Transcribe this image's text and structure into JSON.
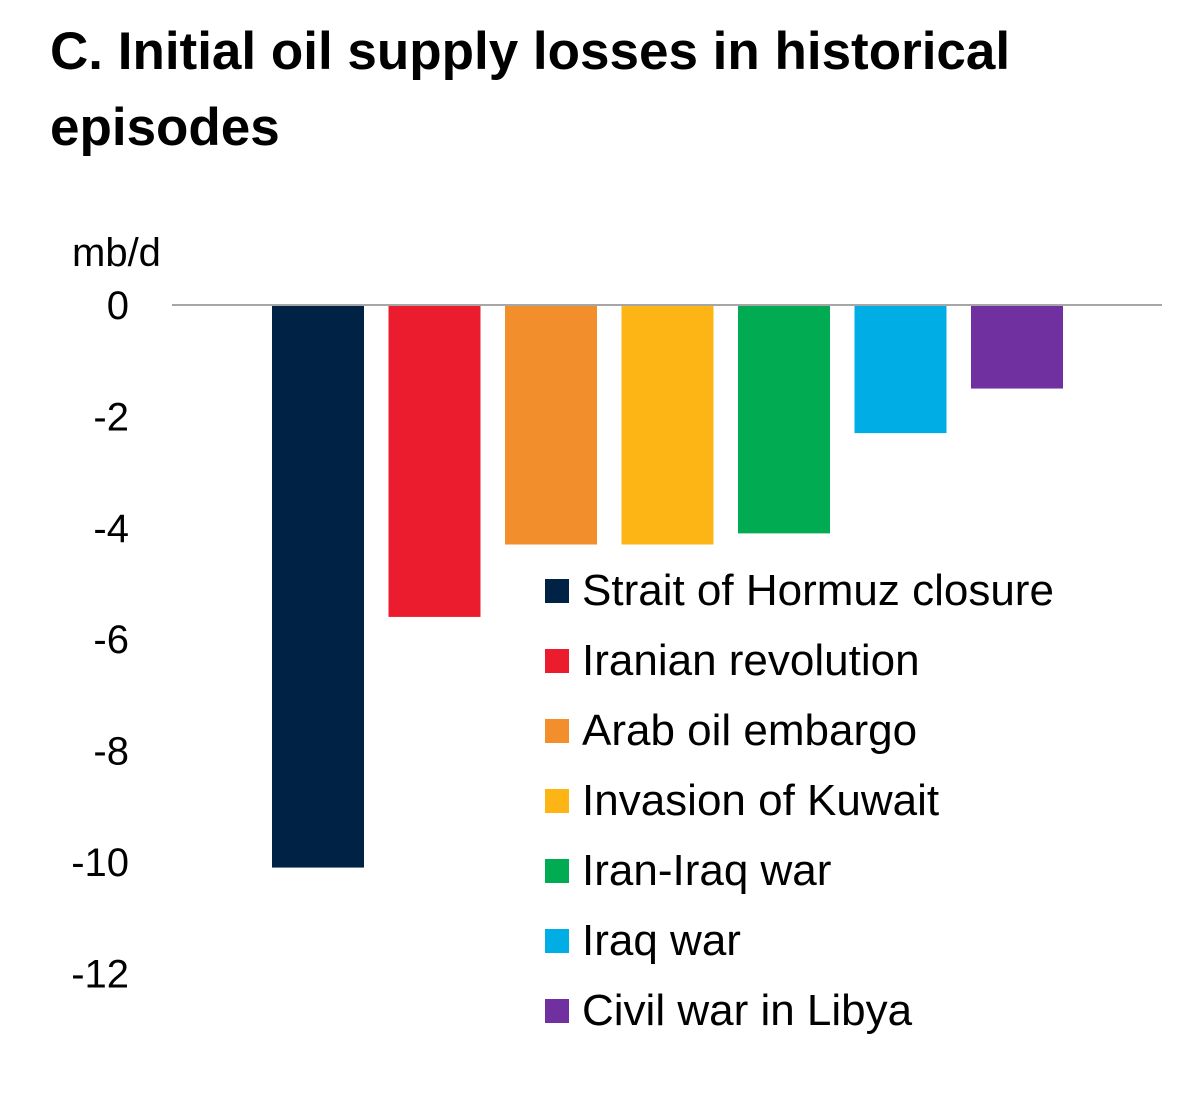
{
  "chart_data": {
    "type": "bar",
    "title": "C. Initial oil supply losses in historical episodes",
    "ylabel": "mb/d",
    "ylim": [
      -12,
      0
    ],
    "yticks": [
      0,
      -2,
      -4,
      -6,
      -8,
      -10,
      -12
    ],
    "grid": false,
    "legend_position": "bottom-right",
    "categories": [
      "Strait of Hormuz closure",
      "Iranian revolution",
      "Arab oil embargo",
      "Invasion of Kuwait",
      "Iran-Iraq war",
      "Iraq war",
      "Civil war in Libya"
    ],
    "values": [
      -10.1,
      -5.6,
      -4.3,
      -4.3,
      -4.1,
      -2.3,
      -1.5
    ],
    "colors": [
      "#002245",
      "#EB1C2D",
      "#F28E2B",
      "#FDB515",
      "#00AB51",
      "#00ADE4",
      "#7030A0"
    ]
  }
}
